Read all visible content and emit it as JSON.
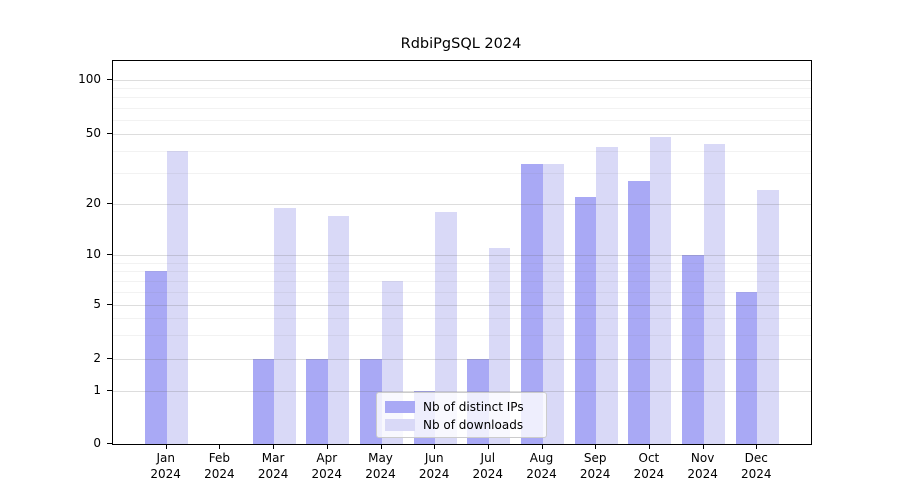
{
  "title": "RdbiPgSQL 2024",
  "chart_data": {
    "type": "bar",
    "title": "RdbiPgSQL 2024",
    "categories": [
      "Jan 2024",
      "Feb 2024",
      "Mar 2024",
      "Apr 2024",
      "May 2024",
      "Jun 2024",
      "Jul 2024",
      "Aug 2024",
      "Sep 2024",
      "Oct 2024",
      "Nov 2024",
      "Dec 2024"
    ],
    "x_tick_months": [
      "Jan",
      "Feb",
      "Mar",
      "Apr",
      "May",
      "Jun",
      "Jul",
      "Aug",
      "Sep",
      "Oct",
      "Nov",
      "Dec"
    ],
    "x_tick_year": "2024",
    "series": [
      {
        "name": "Nb of distinct IPs",
        "color": "#a9a9f5",
        "values": [
          8,
          0,
          2,
          2,
          2,
          1,
          2,
          34,
          22,
          27,
          10,
          6
        ]
      },
      {
        "name": "Nb of downloads",
        "color": "#d9d9f7",
        "values": [
          40,
          0,
          19,
          17,
          7,
          18,
          11,
          34,
          42,
          48,
          44,
          24
        ]
      }
    ],
    "y_axis": {
      "scale": "log-like (0,1,2,5,10,20,50,100)",
      "major_ticks": [
        0,
        1,
        2,
        5,
        10,
        20,
        50,
        100
      ],
      "major_tick_labels": [
        "0",
        "1",
        "2",
        "5",
        "10",
        "20",
        "50",
        "100"
      ],
      "minor_ticks": [
        3,
        4,
        6,
        7,
        8,
        9,
        30,
        40,
        60,
        70,
        80,
        90
      ],
      "ylim": [
        0,
        127
      ]
    },
    "legend": {
      "position": "lower center",
      "labels": [
        "Nb of distinct IPs",
        "Nb of downloads"
      ]
    },
    "grid": "on"
  },
  "colors": {
    "bar_distinct_ips": "#a9a9f5",
    "bar_downloads": "#d9d9f7",
    "grid_major": "#dddddd",
    "grid_minor": "#efefef",
    "axis": "#000000",
    "legend_border": "#cccccc",
    "background": "#ffffff"
  }
}
